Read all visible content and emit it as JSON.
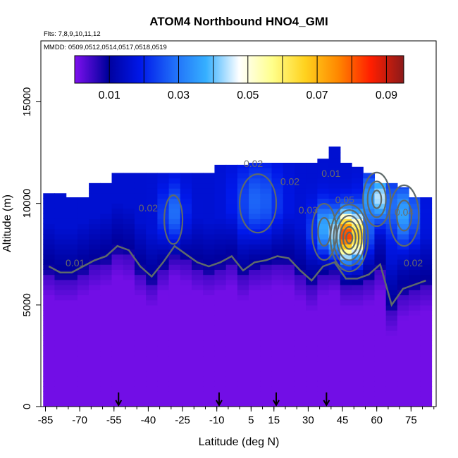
{
  "chart_data": {
    "type": "heatmap",
    "title": "ATOM4 Northbound HNO4_GMI",
    "flights_label": "Flts: 7,8,9,10,11,12",
    "dates_label": "MMDD: 0509,0512,0514,0517,0518,0519",
    "xlabel": "Latitude (deg N)",
    "ylabel": "Altitude (m)",
    "xlim": [
      -87,
      86
    ],
    "ylim": [
      0,
      18000
    ],
    "x_ticks": [
      -85,
      -70,
      -55,
      -40,
      -25,
      -10,
      5,
      15,
      30,
      45,
      60,
      75
    ],
    "x_tick_labels": [
      "-85",
      "-70",
      "-55",
      "-40",
      "-25",
      "-10",
      "5",
      "15",
      "30",
      "45",
      "60",
      "75"
    ],
    "y_ticks": [
      0,
      5000,
      10000,
      15000
    ],
    "y_tick_labels": [
      "0",
      "5000",
      "10000",
      "15000"
    ],
    "colorbar": {
      "range": [
        0,
        0.095
      ],
      "tick_values": [
        0.01,
        0.03,
        0.05,
        0.07,
        0.09
      ],
      "tick_labels": [
        "0.01",
        "0.03",
        "0.05",
        "0.07",
        "0.09"
      ],
      "boundaries": [
        0.01,
        0.02,
        0.03,
        0.04,
        0.05,
        0.06,
        0.07,
        0.08,
        0.09
      ],
      "stops": [
        "#7f10ef",
        "#00009c",
        "#0018ea",
        "#1f6cf8",
        "#36b0ff",
        "#ffffff",
        "#ffff8c",
        "#ffd21e",
        "#ff8800",
        "#ff1e00",
        "#8b1a1a"
      ]
    },
    "contour_labels": [
      {
        "text": "0.01",
        "lat": -72,
        "alt": 6900
      },
      {
        "text": "0.02",
        "lat": -40,
        "alt": 9600
      },
      {
        "text": "0.02",
        "lat": 6,
        "alt": 11800
      },
      {
        "text": "0.02",
        "lat": 22,
        "alt": 10900
      },
      {
        "text": "0.01",
        "lat": 40,
        "alt": 11300
      },
      {
        "text": "0.05",
        "lat": 46,
        "alt": 10000
      },
      {
        "text": "0.04",
        "lat": 72,
        "alt": 9400
      },
      {
        "text": "0.02",
        "lat": 76,
        "alt": 6900
      },
      {
        "text": "0.03",
        "lat": 30,
        "alt": 9500
      }
    ],
    "flight_markers_lat": [
      -53,
      -9,
      16,
      38
    ],
    "profile": {
      "lat_bins": [
        -86,
        -81,
        -76,
        -71,
        -66,
        -61,
        -56,
        -51,
        -46,
        -41,
        -36,
        -31,
        -26,
        -21,
        -16,
        -11,
        -6,
        -1,
        4,
        9,
        14,
        19,
        24,
        29,
        34,
        39,
        44,
        49,
        54,
        59,
        64,
        69,
        74,
        79
      ],
      "top_alt_m": [
        10500,
        10500,
        10300,
        10300,
        11000,
        11000,
        11500,
        11500,
        11500,
        11500,
        11500,
        11500,
        11500,
        11500,
        11500,
        11900,
        11900,
        11900,
        12000,
        12000,
        12000,
        12000,
        12000,
        12000,
        12200,
        12800,
        12000,
        11800,
        11500,
        11000,
        11000,
        10800,
        10300,
        10300
      ],
      "bottom_alt_m": [
        0,
        0,
        0,
        0,
        0,
        0,
        0,
        0,
        0,
        0,
        0,
        0,
        0,
        0,
        0,
        0,
        0,
        0,
        0,
        0,
        0,
        0,
        0,
        0,
        0,
        0,
        0,
        0,
        0,
        0,
        0,
        0,
        0,
        0
      ],
      "boundary_alt_m": [
        6500,
        6200,
        6200,
        6500,
        6800,
        7000,
        7500,
        7300,
        6500,
        6000,
        6700,
        7500,
        7100,
        6700,
        6500,
        6700,
        7000,
        6300,
        6700,
        6800,
        7000,
        6900,
        6300,
        5800,
        6500,
        6700,
        5900,
        5900,
        6100,
        6600,
        4600,
        5400,
        5600,
        5800
      ]
    }
  }
}
